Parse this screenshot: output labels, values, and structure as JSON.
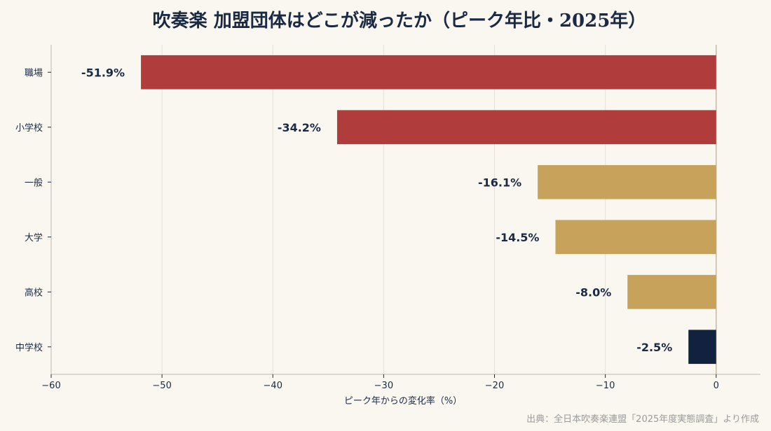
{
  "chart_data": {
    "type": "bar",
    "orientation": "horizontal",
    "title": "吹奏楽 加盟団体はどこが減ったか（ピーク年比・2025年）",
    "categories": [
      "職場",
      "小学校",
      "一般",
      "大学",
      "高校",
      "中学校"
    ],
    "values": [
      -51.9,
      -34.2,
      -16.1,
      -14.5,
      -8.0,
      -2.5
    ],
    "data_labels": [
      "-51.9%",
      "-34.2%",
      "-16.1%",
      "-14.5%",
      "-8.0%",
      "-2.5%"
    ],
    "bar_colors": [
      "#b03c3c",
      "#b03c3c",
      "#c6a25b",
      "#c6a25b",
      "#c6a25b",
      "#10223d"
    ],
    "xlabel": "ピーク年からの変化率（%）",
    "ylabel": "",
    "xlim": [
      -60,
      4
    ],
    "x_ticks": [
      -60,
      -50,
      -40,
      -30,
      -20,
      -10,
      0
    ],
    "x_tick_labels": [
      "−60",
      "−50",
      "−40",
      "−30",
      "−20",
      "−10",
      "0"
    ],
    "grid": "vertical",
    "source": "出典：全日本吹奏楽連盟「2025年度実態調査」より作成"
  },
  "colors": {
    "background": "#faf7f0",
    "grid": "#e6e1d6",
    "axis": "#bdb8ad",
    "zero_line": "#c8b89a",
    "text": "#1b2a44"
  }
}
